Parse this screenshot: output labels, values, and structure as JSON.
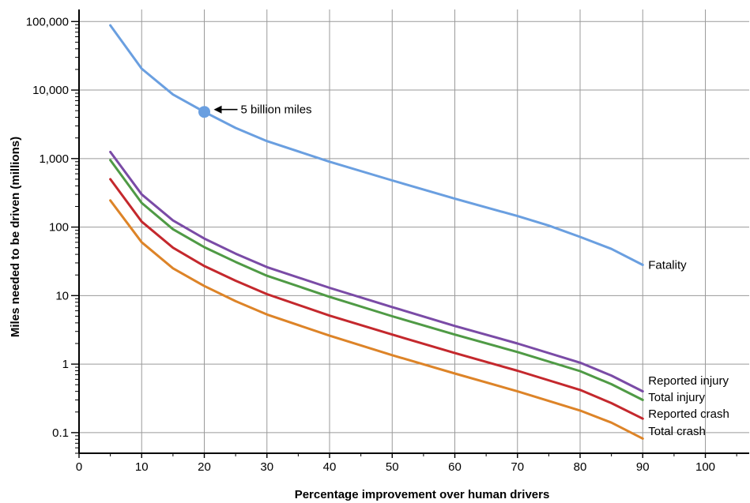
{
  "chart_data": {
    "type": "line",
    "title": "",
    "xlabel": "Percentage improvement over human drivers",
    "ylabel": "Miles needed to be driven (millions)",
    "xlim": [
      0,
      107
    ],
    "ylim": [
      0.05,
      150000
    ],
    "yscale": "log",
    "grid": true,
    "x_ticks": [
      {
        "value": 0,
        "label": "0"
      },
      {
        "value": 10,
        "label": "10"
      },
      {
        "value": 20,
        "label": "20"
      },
      {
        "value": 30,
        "label": "30"
      },
      {
        "value": 40,
        "label": "40"
      },
      {
        "value": 50,
        "label": "50"
      },
      {
        "value": 60,
        "label": "60"
      },
      {
        "value": 70,
        "label": "70"
      },
      {
        "value": 80,
        "label": "80"
      },
      {
        "value": 90,
        "label": "90"
      },
      {
        "value": 100,
        "label": "100"
      }
    ],
    "y_ticks": [
      {
        "value": 100000,
        "label": "100,000"
      },
      {
        "value": 10000,
        "label": "10,000"
      },
      {
        "value": 1000,
        "label": "1,000"
      },
      {
        "value": 100,
        "label": "100"
      },
      {
        "value": 10,
        "label": "10"
      },
      {
        "value": 1,
        "label": "1"
      },
      {
        "value": 0.1,
        "label": "0.1"
      }
    ],
    "series": [
      {
        "name": "Fatality",
        "color": "#6a9fe0",
        "x": [
          5,
          10,
          15,
          20,
          25,
          30,
          40,
          50,
          60,
          70,
          75,
          80,
          85,
          90
        ],
        "y": [
          88000,
          20500,
          8600,
          4800,
          2800,
          1800,
          900,
          480,
          260,
          145,
          105,
          72,
          48,
          28
        ]
      },
      {
        "name": "Reported injury",
        "color": "#7a4ba6",
        "x": [
          5,
          10,
          15,
          20,
          25,
          30,
          40,
          50,
          60,
          70,
          80,
          85,
          90
        ],
        "y": [
          1250,
          300,
          125,
          68,
          41,
          26,
          13,
          6.8,
          3.6,
          2.0,
          1.05,
          0.68,
          0.4
        ]
      },
      {
        "name": "Total injury",
        "color": "#4f9a45",
        "x": [
          5,
          10,
          15,
          20,
          25,
          30,
          40,
          50,
          60,
          70,
          80,
          85,
          90
        ],
        "y": [
          950,
          225,
          93,
          51,
          31,
          19.5,
          9.6,
          5.0,
          2.7,
          1.5,
          0.79,
          0.51,
          0.3
        ]
      },
      {
        "name": "Reported crash",
        "color": "#c4282d",
        "x": [
          5,
          10,
          15,
          20,
          25,
          30,
          40,
          50,
          60,
          70,
          80,
          85,
          90
        ],
        "y": [
          500,
          120,
          50,
          27,
          16.5,
          10.5,
          5.1,
          2.7,
          1.45,
          0.8,
          0.42,
          0.27,
          0.16
        ]
      },
      {
        "name": "Total crash",
        "color": "#dd8428",
        "x": [
          5,
          10,
          15,
          20,
          25,
          30,
          40,
          50,
          60,
          70,
          80,
          85,
          90
        ],
        "y": [
          245,
          60,
          25,
          13.8,
          8.3,
          5.3,
          2.6,
          1.35,
          0.73,
          0.4,
          0.21,
          0.14,
          0.082
        ]
      }
    ],
    "annotations": [
      {
        "text": "5 billion miles",
        "x": 20,
        "y": 4800,
        "marker": "circle",
        "color": "#6a9fe0"
      }
    ]
  }
}
